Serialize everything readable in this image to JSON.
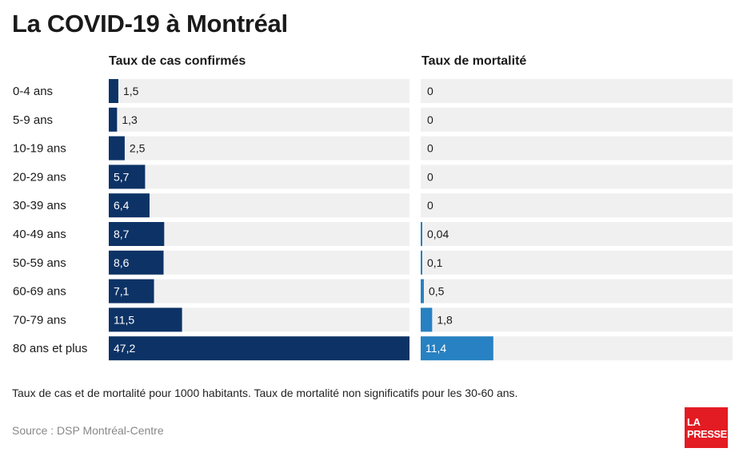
{
  "title": "La COVID-19 à Montréal",
  "footnote": "Taux de cas et de mortalité pour 1000 habitants. Taux de mortalité non significatifs pour les 30-60 ans.",
  "source": "Source : DSP Montréal-Centre",
  "logo": {
    "line1": "LA",
    "line2": "PRESSE"
  },
  "colors": {
    "cases": "#0d3366",
    "mortality": "#2781c2",
    "track": "#f0f0f1"
  },
  "chart_data": [
    {
      "type": "bar",
      "orientation": "horizontal",
      "title": "Taux de cas confirmés",
      "categories": [
        "0-4 ans",
        "5-9 ans",
        "10-19 ans",
        "20-29 ans",
        "30-39 ans",
        "40-49 ans",
        "50-59 ans",
        "60-69 ans",
        "70-79 ans",
        "80 ans et plus"
      ],
      "values": [
        1.5,
        1.3,
        2.5,
        5.7,
        6.4,
        8.7,
        8.6,
        7.1,
        11.5,
        47.2
      ],
      "labels": [
        "1,5",
        "1,3",
        "2,5",
        "5,7",
        "6,4",
        "8,7",
        "8,6",
        "7,1",
        "11,5",
        "47,2"
      ],
      "xlim": [
        0,
        47.2
      ]
    },
    {
      "type": "bar",
      "orientation": "horizontal",
      "title": "Taux de mortalité",
      "categories": [
        "0-4 ans",
        "5-9 ans",
        "10-19 ans",
        "20-29 ans",
        "30-39 ans",
        "40-49 ans",
        "50-59 ans",
        "60-69 ans",
        "70-79 ans",
        "80 ans et plus"
      ],
      "values": [
        0,
        0,
        0,
        0,
        0,
        0.04,
        0.1,
        0.5,
        1.8,
        11.4
      ],
      "labels": [
        "0",
        "0",
        "0",
        "0",
        "0",
        "0,04",
        "0,1",
        "0,5",
        "1,8",
        "11,4"
      ],
      "xlim": [
        0,
        47.2
      ]
    }
  ]
}
